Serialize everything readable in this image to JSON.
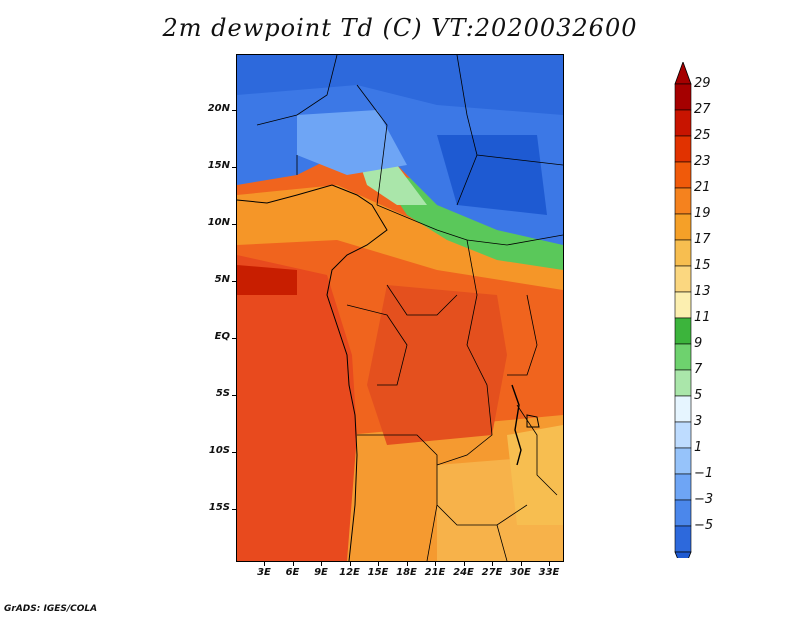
{
  "title": "2m dewpoint Td (C) VT:2020032600",
  "footer": "GrADS: IGES/COLA",
  "y_axis_labels": [
    "20N",
    "15N",
    "10N",
    "5N",
    "EQ",
    "5S",
    "10S",
    "15S"
  ],
  "x_axis_labels": [
    "3E",
    "6E",
    "9E",
    "12E",
    "15E",
    "18E",
    "21E",
    "24E",
    "27E",
    "30E",
    "33E"
  ],
  "colorbar": {
    "labels": [
      "29",
      "27",
      "25",
      "23",
      "21",
      "19",
      "17",
      "15",
      "13",
      "11",
      "9",
      "7",
      "5",
      "3",
      "1",
      "−1",
      "−3",
      "−5"
    ],
    "colors": [
      "#a50000",
      "#c81400",
      "#e13200",
      "#f05a0a",
      "#f5821e",
      "#f5a028",
      "#f7be50",
      "#fbd780",
      "#fcefb0",
      "#3cb43c",
      "#6ed26e",
      "#aae6aa",
      "#e6f5ff",
      "#bedcff",
      "#96c3fa",
      "#6ea5f5",
      "#4b87eb",
      "#2d69dc"
    ]
  },
  "colors": {
    "dry_blue": "#3c78e6",
    "ocean_red": "#e6461e",
    "moist_orange": "#f59628",
    "green": "#5ac85a"
  }
}
